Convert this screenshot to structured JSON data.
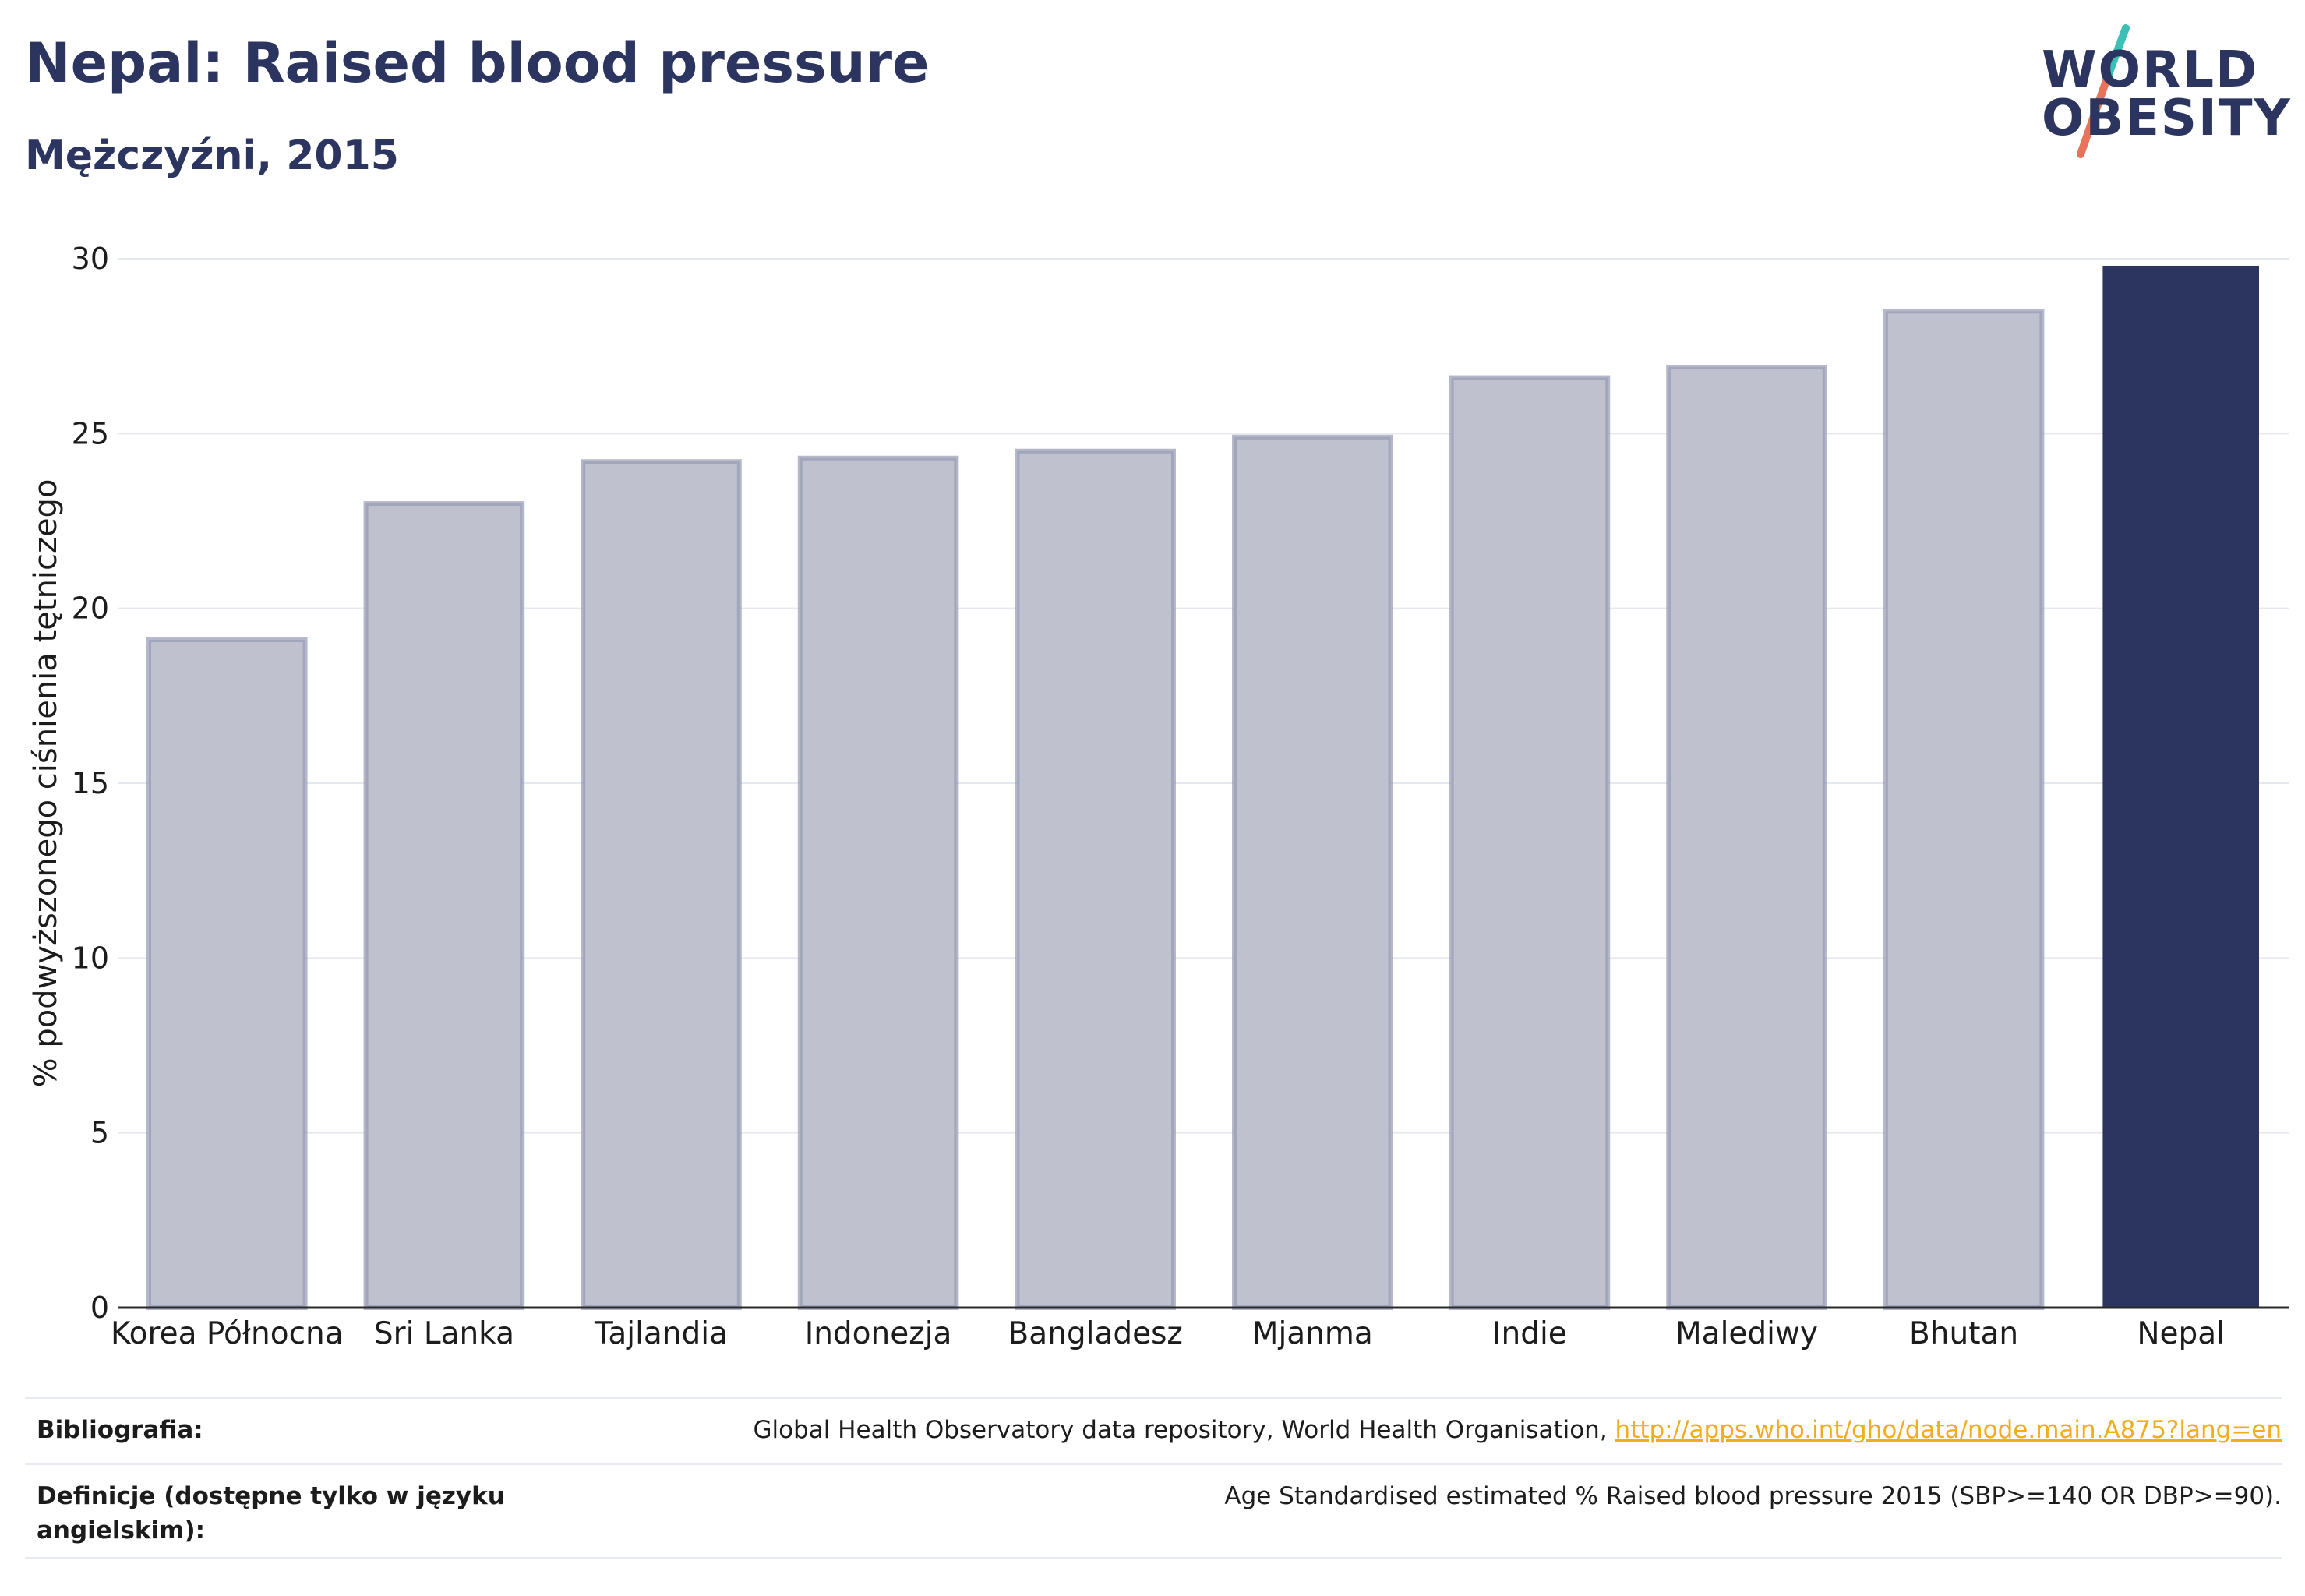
{
  "title": "Nepal: Raised blood pressure",
  "subtitle": "Mężczyźni, 2015",
  "logo": {
    "line1": "WORLD",
    "line2": "OBESITY"
  },
  "colors": {
    "highlight": "#2b355f",
    "muted": "#bfc2ce",
    "muted_stroke": "#959ab3",
    "grid": "#e6e8ef",
    "link": "#f0ad1c"
  },
  "chart_data": {
    "type": "bar",
    "title": "Nepal: Raised blood pressure",
    "subtitle": "Mężczyźni, 2015",
    "xlabel": "",
    "ylabel": "% podwyższonego ciśnienia tętniczego",
    "ylim": [
      0,
      30
    ],
    "yticks": [
      0,
      5,
      10,
      15,
      20,
      25,
      30
    ],
    "grid": true,
    "categories": [
      "Korea Północna",
      "Sri Lanka",
      "Tajlandia",
      "Indonezja",
      "Bangladesz",
      "Mjanma",
      "Indie",
      "Malediwy",
      "Bhutan",
      "Nepal"
    ],
    "values": [
      19.1,
      23.0,
      24.2,
      24.3,
      24.5,
      24.9,
      26.6,
      26.9,
      28.5,
      29.8
    ],
    "highlight": "Nepal"
  },
  "footer": {
    "source_label": "Bibliografia:",
    "source_text": "Global Health Observatory data repository, World Health Organisation, ",
    "source_link": "http://apps.who.int/gho/data/node.main.A875?lang=en",
    "definition_label": "Definicje (dostępne tylko w języku angielskim):",
    "definition_text": "Age Standardised estimated % Raised blood pressure 2015 (SBP>=140 OR DBP>=90)."
  }
}
